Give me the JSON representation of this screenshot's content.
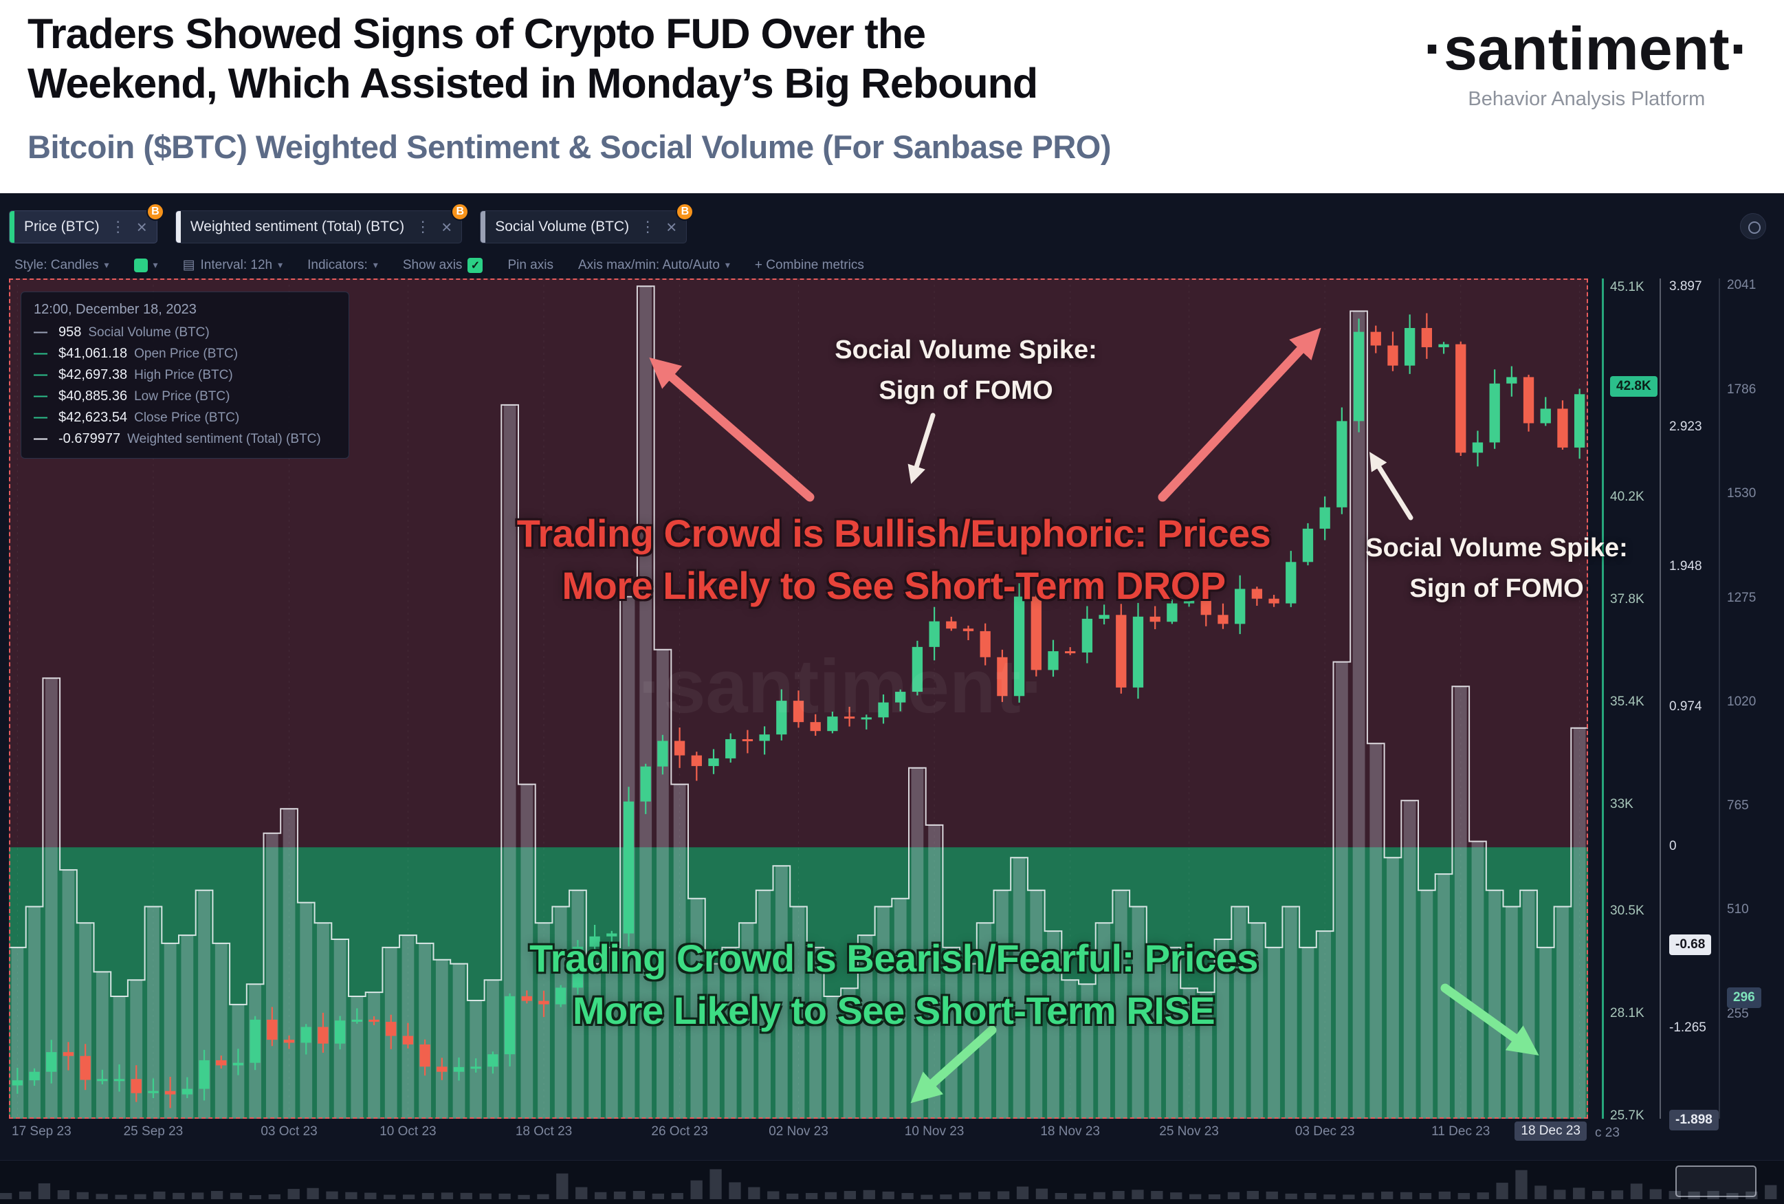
{
  "header": {
    "title_line1": "Traders Showed Signs of Crypto FUD Over the",
    "title_line2": "Weekend, Which Assisted in Monday’s Big Rebound",
    "subtitle": "Bitcoin ($BTC) Weighted Sentiment & Social Volume (For Sanbase PRO)",
    "brand": {
      "logo": "·santiment·",
      "tagline": "Behavior Analysis Platform"
    }
  },
  "tabs": [
    {
      "label": "Price (BTC)",
      "color": "#2bd186",
      "badge": "B"
    },
    {
      "label": "Weighted sentiment (Total) (BTC)",
      "color": "#e8ebf2",
      "badge": "B"
    },
    {
      "label": "Social Volume (BTC)",
      "color": "#9aa1b5",
      "badge": "B"
    }
  ],
  "toolbar": {
    "style_label": "Style: Candles",
    "interval_label": "Interval: 12h",
    "indicators_label": "Indicators:",
    "show_axis_label": "Show axis",
    "show_axis_checked": true,
    "check_glyph": "✓",
    "pin_axis_label": "Pin axis",
    "axis_maxmin_label": "Axis max/min: Auto/Auto",
    "combine_label": "+ Combine metrics"
  },
  "legend": {
    "timestamp": "12:00, December 18, 2023",
    "rows": [
      {
        "value": "958",
        "label": "Social Volume (BTC)",
        "color": "#9aa1b5"
      },
      {
        "value": "$41,061.18",
        "label": "Open Price (BTC)",
        "color": "#2bbf8b"
      },
      {
        "value": "$42,697.38",
        "label": "High Price (BTC)",
        "color": "#2bbf8b"
      },
      {
        "value": "$40,885.36",
        "label": "Low Price (BTC)",
        "color": "#2bbf8b"
      },
      {
        "value": "$42,623.54",
        "label": "Close Price (BTC)",
        "color": "#2bbf8b"
      },
      {
        "value": "-0.679977",
        "label": "Weighted sentiment (Total) (BTC)",
        "color": "#e8ebf2"
      }
    ]
  },
  "annotations": {
    "fomo_top": {
      "line1": "Social Volume Spike:",
      "line2": "Sign of FOMO"
    },
    "fomo_right": {
      "line1": "Social Volume Spike:",
      "line2": "Sign of FOMO"
    },
    "bullish": {
      "line1": "Trading Crowd is Bullish/Euphoric: Prices",
      "line2": "More Likely to See Short-Term DROP"
    },
    "bearish": {
      "line1": "Trading Crowd is Bearish/Fearful: Prices",
      "line2": "More Likely to See Short-Term RISE"
    }
  },
  "watermark": "·santiment·",
  "colors": {
    "accent_green": "#2bd186",
    "candle_up": "#3fcf8e",
    "candle_down": "#f2614d",
    "zone_bullish": "#3a1e2c",
    "zone_bearish": "#1e7552",
    "dashed_border": "#e85c5c",
    "bitcoin_badge": "#f7931a",
    "annotation_red": "#e8433a",
    "annotation_green": "#3ddc84",
    "arrow_red": "#f07878",
    "arrow_green": "#7de896",
    "arrow_white": "#f3ece6",
    "volume_bar": "rgba(208,214,228,0.30)",
    "volume_line": "rgba(247,248,252,0.85)"
  },
  "chart_data": {
    "type": "mixed",
    "description": "BTC candlestick price with social-volume bars/step-line; weighted-sentiment zones (positive = red/bullish zone, negative = green/bearish zone)",
    "interval": "12h",
    "x_range": {
      "start": "17 Sep 23",
      "end": "18 Dec 23",
      "n_days": 93
    },
    "price_ylim_k": [
      25.65,
      45.33
    ],
    "sentiment_ylim": [
      -1.89,
      3.96
    ],
    "social_ylim": [
      0,
      2060
    ],
    "series": [
      {
        "name": "Price (BTC)",
        "type": "candlestick",
        "unit": "USD thousands",
        "close_k": [
          26.55,
          26.75,
          27.21,
          27.12,
          26.56,
          26.58,
          26.58,
          26.25,
          26.3,
          26.22,
          26.35,
          27.02,
          26.9,
          26.96,
          27.97,
          27.5,
          27.43,
          27.8,
          27.41,
          27.95,
          27.97,
          27.92,
          27.59,
          27.39,
          26.87,
          26.75,
          26.86,
          26.87,
          27.16,
          28.52,
          28.41,
          28.33,
          28.72,
          29.68,
          29.92,
          29.99,
          33.08,
          33.9,
          34.5,
          34.16,
          33.91,
          34.09,
          34.54,
          34.5,
          34.65,
          35.44,
          34.94,
          34.73,
          35.07,
          35.05,
          35.05,
          35.4,
          35.65,
          36.7,
          37.3,
          37.13,
          37.07,
          36.46,
          35.55,
          37.88,
          36.16,
          36.6,
          36.57,
          37.36,
          37.45,
          35.75,
          37.41,
          37.29,
          37.72,
          37.78,
          37.45,
          37.24,
          38.06,
          37.83,
          37.72,
          38.69,
          39.47,
          39.97,
          41.99,
          44.08,
          43.76,
          43.29,
          44.17,
          43.72,
          43.79,
          41.25,
          41.49,
          42.87,
          43.02,
          41.94,
          42.28,
          41.37,
          42.62
        ]
      },
      {
        "name": "Social Volume (BTC)",
        "type": "step-area",
        "values": [
          420,
          520,
          1080,
          610,
          480,
          360,
          300,
          340,
          520,
          430,
          450,
          560,
          430,
          280,
          330,
          700,
          760,
          530,
          480,
          440,
          300,
          310,
          420,
          450,
          430,
          390,
          380,
          290,
          340,
          1750,
          820,
          480,
          520,
          560,
          380,
          420,
          1280,
          2041,
          1150,
          820,
          540,
          380,
          420,
          480,
          560,
          620,
          520,
          420,
          300,
          320,
          450,
          520,
          540,
          860,
          720,
          420,
          380,
          480,
          560,
          640,
          560,
          460,
          340,
          330,
          480,
          560,
          520,
          380,
          420,
          320,
          310,
          440,
          520,
          480,
          420,
          520,
          420,
          460,
          1120,
          1980,
          920,
          640,
          780,
          560,
          600,
          1060,
          680,
          560,
          520,
          560,
          420,
          520,
          958
        ]
      },
      {
        "name": "Weighted sentiment (Total) (BTC)",
        "type": "zones",
        "current": -0.679977,
        "positive_zone": "bullish (red area above 0)",
        "negative_zone": "bearish (green area below 0)"
      }
    ],
    "last_candle": {
      "open": 41061.18,
      "high": 42697.38,
      "low": 40885.36,
      "close": 42623.54
    },
    "axes": {
      "price": {
        "ticks": [
          {
            "label": "45.1K",
            "v": 45.1
          },
          {
            "label": "42.8K",
            "v": 42.8,
            "badge": "green"
          },
          {
            "label": "40.2K",
            "v": 40.2
          },
          {
            "label": "37.8K",
            "v": 37.8
          },
          {
            "label": "35.4K",
            "v": 35.4
          },
          {
            "label": "33K",
            "v": 33.0
          },
          {
            "label": "30.5K",
            "v": 30.5
          },
          {
            "label": "28.1K",
            "v": 28.1
          },
          {
            "label": "25.7K",
            "v": 25.7
          }
        ]
      },
      "sentiment": {
        "ticks": [
          {
            "label": "3.897",
            "v": 3.897
          },
          {
            "label": "2.923",
            "v": 2.923
          },
          {
            "label": "1.948",
            "v": 1.948
          },
          {
            "label": "0.974",
            "v": 0.974
          },
          {
            "label": "0",
            "v": 0
          },
          {
            "label": "-0.68",
            "v": -0.68,
            "badge": "white"
          },
          {
            "label": "-1.265",
            "v": -1.265
          },
          {
            "label": "-1.898",
            "v": -1.898,
            "badge": "dark"
          }
        ]
      },
      "social": {
        "ticks": [
          {
            "label": "2041",
            "v": 2041
          },
          {
            "label": "1786",
            "v": 1786
          },
          {
            "label": "1530",
            "v": 1530
          },
          {
            "label": "1275",
            "v": 1275
          },
          {
            "label": "1020",
            "v": 1020
          },
          {
            "label": "765",
            "v": 765
          },
          {
            "label": "510",
            "v": 510
          },
          {
            "label": "296",
            "v": 296,
            "badge": "dark-teal"
          },
          {
            "label": "255",
            "v": 255
          }
        ]
      },
      "x": {
        "ticks": [
          {
            "label": "17 Sep 23",
            "day": 0
          },
          {
            "label": "25 Sep 23",
            "day": 8
          },
          {
            "label": "03 Oct 23",
            "day": 16
          },
          {
            "label": "10 Oct 23",
            "day": 23
          },
          {
            "label": "18 Oct 23",
            "day": 31
          },
          {
            "label": "26 Oct 23",
            "day": 39
          },
          {
            "label": "02 Nov 23",
            "day": 46
          },
          {
            "label": "10 Nov 23",
            "day": 54
          },
          {
            "label": "18 Nov 23",
            "day": 62
          },
          {
            "label": "25 Nov 23",
            "day": 69
          },
          {
            "label": "03 Dec 23",
            "day": 77
          },
          {
            "label": "11 Dec 23",
            "day": 85
          },
          {
            "label": "18 Dec 23",
            "day": 92,
            "badge": true
          }
        ],
        "overflow_text": "c 23"
      }
    }
  }
}
